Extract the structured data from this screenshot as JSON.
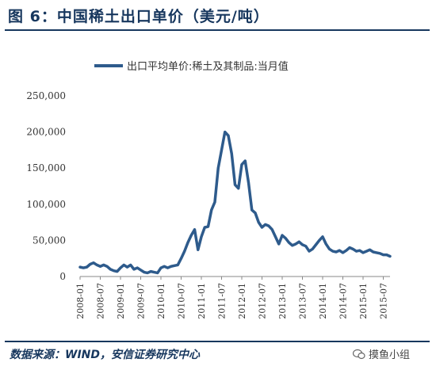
{
  "figure": {
    "title": "图 6：中国稀土出口单价（美元/吨）",
    "source": "数据来源：WIND，安信证券研究中心",
    "watermark": "摸鱼小组"
  },
  "chart_data": {
    "type": "line",
    "title": "图 6：中国稀土出口单价（美元/吨）",
    "xlabel": "",
    "ylabel": "",
    "ylim": [
      0,
      250000
    ],
    "yticks": [
      0,
      50000,
      100000,
      150000,
      200000,
      250000
    ],
    "ytick_labels": [
      "0",
      "50,000",
      "100,000",
      "150,000",
      "200,000",
      "250,000"
    ],
    "xtick_labels": [
      "2008-01",
      "2008-07",
      "2009-01",
      "2009-07",
      "2010-01",
      "2010-07",
      "2011-01",
      "2011-07",
      "2012-01",
      "2012-07",
      "2013-01",
      "2013-07",
      "2014-01",
      "2014-07",
      "2015-01",
      "2015-07"
    ],
    "legend_position": "top",
    "grid": false,
    "color": "#2E5B8C",
    "series": [
      {
        "name": "出口平均单价:稀土及其制品:当月值",
        "x": [
          "2008-01",
          "2008-02",
          "2008-03",
          "2008-04",
          "2008-05",
          "2008-06",
          "2008-07",
          "2008-08",
          "2008-09",
          "2008-10",
          "2008-11",
          "2008-12",
          "2009-01",
          "2009-02",
          "2009-03",
          "2009-04",
          "2009-05",
          "2009-06",
          "2009-07",
          "2009-08",
          "2009-09",
          "2009-10",
          "2009-11",
          "2009-12",
          "2010-01",
          "2010-02",
          "2010-03",
          "2010-04",
          "2010-05",
          "2010-06",
          "2010-07",
          "2010-08",
          "2010-09",
          "2010-10",
          "2010-11",
          "2010-12",
          "2011-01",
          "2011-02",
          "2011-03",
          "2011-04",
          "2011-05",
          "2011-06",
          "2011-07",
          "2011-08",
          "2011-09",
          "2011-10",
          "2011-11",
          "2011-12",
          "2012-01",
          "2012-02",
          "2012-03",
          "2012-04",
          "2012-05",
          "2012-06",
          "2012-07",
          "2012-08",
          "2012-09",
          "2012-10",
          "2012-11",
          "2012-12",
          "2013-01",
          "2013-02",
          "2013-03",
          "2013-04",
          "2013-05",
          "2013-06",
          "2013-07",
          "2013-08",
          "2013-09",
          "2013-10",
          "2013-11",
          "2013-12",
          "2014-01",
          "2014-02",
          "2014-03",
          "2014-04",
          "2014-05",
          "2014-06",
          "2014-07",
          "2014-08",
          "2014-09",
          "2014-10",
          "2014-11",
          "2014-12",
          "2015-01",
          "2015-02",
          "2015-03",
          "2015-04",
          "2015-05",
          "2015-06",
          "2015-07",
          "2015-08",
          "2015-09"
        ],
        "values": [
          13000,
          12000,
          13000,
          17000,
          19000,
          16000,
          14000,
          16000,
          14000,
          10000,
          8000,
          7000,
          12000,
          16000,
          13000,
          16000,
          10000,
          12000,
          9000,
          6000,
          5000,
          7000,
          6000,
          5000,
          12000,
          14000,
          12000,
          14000,
          15000,
          16000,
          25000,
          35000,
          47000,
          57000,
          65000,
          37000,
          55000,
          68000,
          69000,
          92000,
          103000,
          150000,
          175000,
          200000,
          195000,
          170000,
          127000,
          122000,
          155000,
          160000,
          130000,
          92000,
          88000,
          75000,
          68000,
          72000,
          70000,
          65000,
          55000,
          45000,
          57000,
          53000,
          47000,
          43000,
          45000,
          48000,
          44000,
          42000,
          35000,
          38000,
          44000,
          50000,
          55000,
          45000,
          38000,
          35000,
          34000,
          36000,
          33000,
          36000,
          40000,
          38000,
          35000,
          36000,
          33000,
          35000,
          37000,
          34000,
          33000,
          32000,
          30000,
          30000,
          28000
        ]
      }
    ]
  }
}
